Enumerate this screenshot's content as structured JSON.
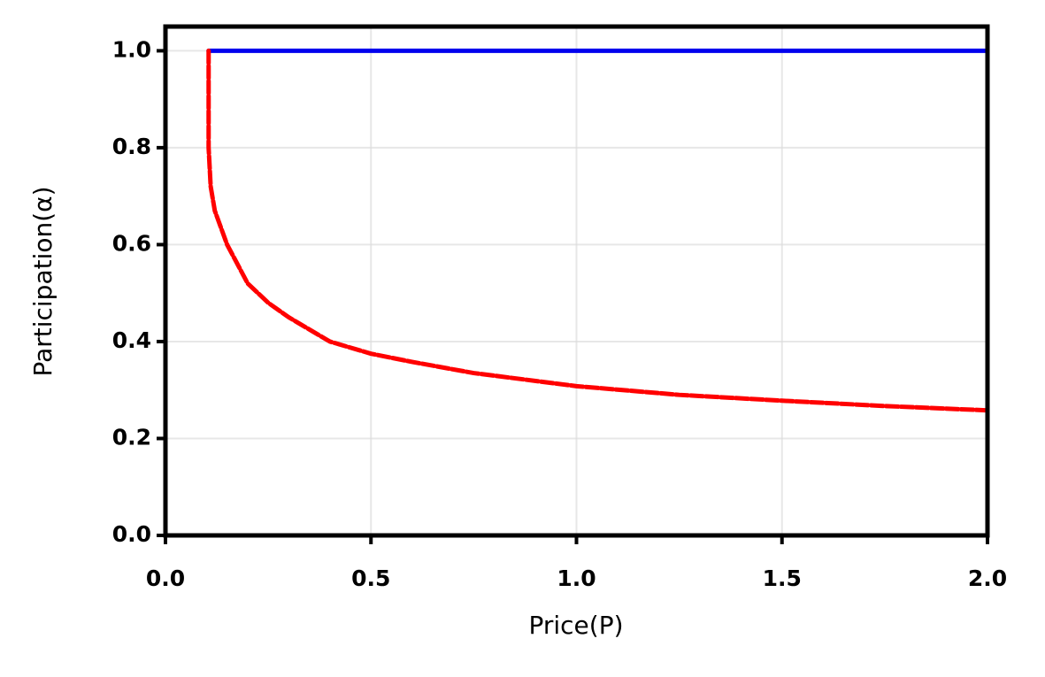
{
  "chart_data": {
    "type": "line",
    "x_label": "Price(P)",
    "y_label": "Participation(α)",
    "xlim": [
      0,
      2
    ],
    "ylim": [
      0,
      1.05
    ],
    "xticks": [
      {
        "value": 0,
        "label": "0.0"
      },
      0.5,
      {
        "value": 1,
        "label": "1.0"
      },
      1.5,
      {
        "value": 2,
        "label": "2.0"
      }
    ],
    "yticks": [
      {
        "value": 0,
        "label": "0.0"
      },
      0.2,
      0.4,
      0.6,
      0.8,
      {
        "value": 1,
        "label": "1.0"
      }
    ],
    "grid": true,
    "series": [
      {
        "color": "#0000ee",
        "dashed": false,
        "x": [
          0.105,
          2.0
        ],
        "values": [
          1.0,
          1.0
        ]
      },
      {
        "color": "#ff0000",
        "dashed": true,
        "x": [
          0.105,
          0.105,
          0.11,
          0.12,
          0.15,
          0.2,
          0.25,
          0.3,
          0.4,
          0.5,
          0.6,
          0.75,
          1.0,
          1.25,
          1.5,
          1.75,
          2.0
        ],
        "values": [
          1.0,
          0.8,
          0.72,
          0.67,
          0.6,
          0.52,
          0.48,
          0.45,
          0.4,
          0.375,
          0.358,
          0.335,
          0.308,
          0.29,
          0.278,
          0.267,
          0.258
        ]
      }
    ]
  }
}
